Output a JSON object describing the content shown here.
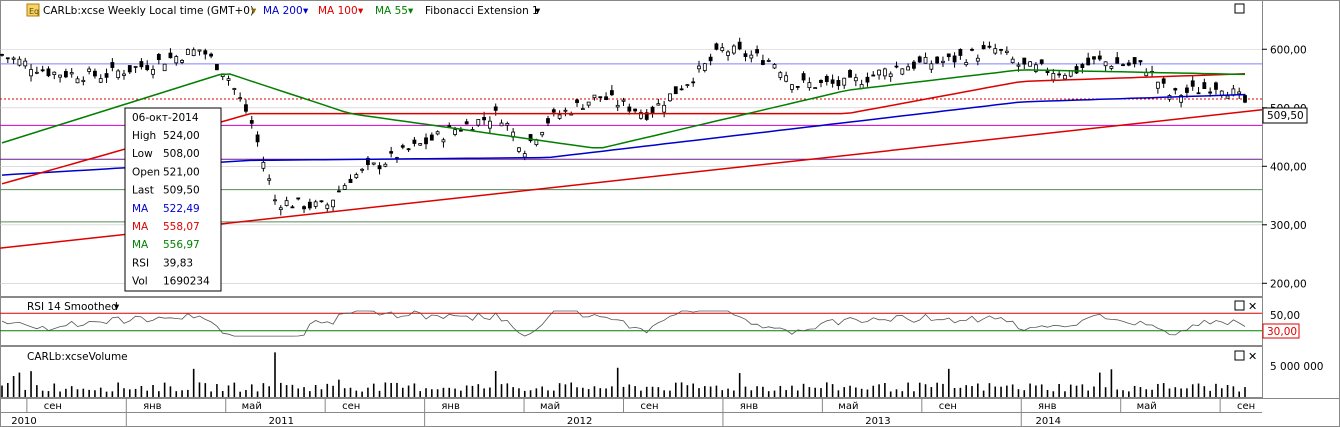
{
  "header": {
    "symbol_label": "CARLb:xcse Weekly Local time (GMT+0)",
    "ma200_label": "MA 200",
    "ma100_label": "MA 100",
    "ma55_label": "MA 55",
    "fib_label": "Fibonacci Extension 1",
    "icon": "eq-icon",
    "dropdown_icon": "caret-down-icon"
  },
  "price_panel": {
    "last_price_tag": "509,50",
    "y_ticks": [
      "600,00",
      "500,00",
      "400,00",
      "300,00",
      "200,00"
    ]
  },
  "tooltip": {
    "date": "06-окт-2014",
    "rows": [
      {
        "label": "High",
        "value": "524,00",
        "color": "#000000"
      },
      {
        "label": "Low",
        "value": "508,00",
        "color": "#000000"
      },
      {
        "label": "Open",
        "value": "521,00",
        "color": "#000000"
      },
      {
        "label": "Last",
        "value": "509,50",
        "color": "#000000"
      },
      {
        "label": "MA",
        "value": "522,49",
        "color": "#0000cc"
      },
      {
        "label": "MA",
        "value": "558,07",
        "color": "#dd0000"
      },
      {
        "label": "MA",
        "value": "556,97",
        "color": "#008000"
      },
      {
        "label": "RSI",
        "value": "39,83",
        "color": "#000000"
      },
      {
        "label": "Vol",
        "value": "1690234",
        "color": "#000000"
      }
    ]
  },
  "rsi_panel": {
    "title": "RSI 14 Smoothed",
    "y_tick": "50,00",
    "level_tag": "30,00"
  },
  "volume_panel": {
    "title": "CARLb:xcseVolume",
    "y_tick": "5 000 000"
  },
  "x_axis": {
    "months": [
      "сен",
      "янв",
      "май",
      "сен",
      "янв",
      "май",
      "сен",
      "янв",
      "май",
      "сен",
      "янв",
      "май",
      "сен"
    ],
    "years": [
      "2010",
      "2011",
      "2012",
      "2013",
      "2014"
    ]
  },
  "colors": {
    "ma200": "#0000cc",
    "ma100": "#dd0000",
    "ma55": "#008000",
    "trendline": "#dd0000",
    "fib_levels": "#8080ff",
    "magenta_level": "#cc00cc",
    "grid": "#c8c8c8"
  },
  "chart_data": {
    "type": "candlestick",
    "interval": "weekly",
    "x_range": [
      "2010-08",
      "2014-10"
    ],
    "ylim": [
      180,
      650
    ],
    "last": {
      "date": "06-окт-2014",
      "high": 524.0,
      "low": 508.0,
      "open": 521.0,
      "last": 509.5,
      "volume": 1690234
    },
    "indicators": {
      "ma200": 522.49,
      "ma100": 558.07,
      "ma55": 556.97,
      "rsi14": 39.83
    },
    "price_path_approx": [
      [
        "2010-08",
        590
      ],
      [
        "2010-10",
        560
      ],
      [
        "2010-12",
        555
      ],
      [
        "2011-02",
        575
      ],
      [
        "2011-04",
        600
      ],
      [
        "2011-05",
        560
      ],
      [
        "2011-06",
        480
      ],
      [
        "2011-07",
        340
      ],
      [
        "2011-09",
        330
      ],
      [
        "2011-10",
        380
      ],
      [
        "2011-12",
        420
      ],
      [
        "2012-02",
        460
      ],
      [
        "2012-04",
        490
      ],
      [
        "2012-05",
        430
      ],
      [
        "2012-06",
        480
      ],
      [
        "2012-08",
        520
      ],
      [
        "2012-10",
        490
      ],
      [
        "2012-12",
        560
      ],
      [
        "2013-01",
        600
      ],
      [
        "2013-03",
        580
      ],
      [
        "2013-04",
        540
      ],
      [
        "2013-06",
        540
      ],
      [
        "2013-08",
        570
      ],
      [
        "2013-10",
        580
      ],
      [
        "2013-12",
        600
      ],
      [
        "2014-01",
        570
      ],
      [
        "2014-03",
        560
      ],
      [
        "2014-04",
        580
      ],
      [
        "2014-06",
        570
      ],
      [
        "2014-07",
        520
      ],
      [
        "2014-09",
        540
      ],
      [
        "2014-10",
        509.5
      ]
    ],
    "ma200_path": [
      [
        "2010-08",
        385
      ],
      [
        "2011-06",
        410
      ],
      [
        "2012-06",
        415
      ],
      [
        "2013-06",
        475
      ],
      [
        "2014-01",
        510
      ],
      [
        "2014-10",
        522.49
      ]
    ],
    "ma100_path": [
      [
        "2010-08",
        370
      ],
      [
        "2011-06",
        490
      ],
      [
        "2012-06",
        490
      ],
      [
        "2013-06",
        490
      ],
      [
        "2014-01",
        545
      ],
      [
        "2014-10",
        558.07
      ]
    ],
    "ma55_path": [
      [
        "2010-08",
        440
      ],
      [
        "2011-05",
        560
      ],
      [
        "2011-10",
        490
      ],
      [
        "2012-08",
        430
      ],
      [
        "2013-06",
        530
      ],
      [
        "2014-01",
        565
      ],
      [
        "2014-10",
        556.97
      ]
    ],
    "trendline": [
      [
        "2010-08",
        260
      ],
      [
        "2014-10",
        500
      ]
    ],
    "horizontal_levels": [
      575,
      515,
      470,
      412,
      360,
      305
    ],
    "rsi": {
      "ylim": [
        0,
        100
      ],
      "levels": [
        70,
        30
      ],
      "last": 39.83
    },
    "volume": {
      "ylim": [
        0,
        8000000
      ],
      "last": 1690234
    }
  }
}
